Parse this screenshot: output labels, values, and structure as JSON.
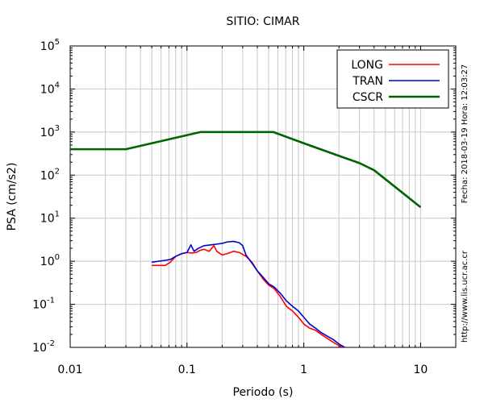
{
  "chart_data": {
    "type": "line",
    "title": "SITIO: CIMAR",
    "xlabel": "Periodo (s)",
    "ylabel": "PSA (cm/s2)",
    "x_scale": "log",
    "y_scale": "log",
    "xlim": [
      0.01,
      20
    ],
    "ylim": [
      0.01,
      100000
    ],
    "grid": true,
    "legend_position": "top-right",
    "x_ticks": [
      {
        "value": 0.01,
        "label": "0.01"
      },
      {
        "value": 0.1,
        "label": "0.1"
      },
      {
        "value": 1,
        "label": "1"
      },
      {
        "value": 10,
        "label": "10"
      }
    ],
    "y_ticks": [
      {
        "value": 0.01,
        "base": "10",
        "exp": "-2"
      },
      {
        "value": 0.1,
        "base": "10",
        "exp": "-1"
      },
      {
        "value": 1,
        "base": "10",
        "exp": "0"
      },
      {
        "value": 10,
        "base": "10",
        "exp": "1"
      },
      {
        "value": 100,
        "base": "10",
        "exp": "2"
      },
      {
        "value": 1000,
        "base": "10",
        "exp": "3"
      },
      {
        "value": 10000,
        "base": "10",
        "exp": "4"
      },
      {
        "value": 100000,
        "base": "10",
        "exp": "5"
      }
    ],
    "series": [
      {
        "name": "LONG",
        "color": "#ff0000",
        "x": [
          0.05,
          0.057,
          0.065,
          0.072,
          0.08,
          0.09,
          0.1,
          0.11,
          0.12,
          0.13,
          0.14,
          0.155,
          0.17,
          0.18,
          0.2,
          0.22,
          0.25,
          0.28,
          0.32,
          0.36,
          0.4,
          0.45,
          0.5,
          0.56,
          0.63,
          0.71,
          0.8,
          0.9,
          1.0,
          1.12,
          1.26,
          1.41,
          1.6,
          1.8,
          2.0,
          2.24
        ],
        "y": [
          0.8,
          0.8,
          0.8,
          0.95,
          1.3,
          1.5,
          1.6,
          1.55,
          1.6,
          1.8,
          1.9,
          1.7,
          2.3,
          1.7,
          1.4,
          1.5,
          1.7,
          1.6,
          1.3,
          0.95,
          0.6,
          0.38,
          0.28,
          0.23,
          0.15,
          0.09,
          0.07,
          0.05,
          0.035,
          0.028,
          0.025,
          0.02,
          0.016,
          0.013,
          0.011,
          0.0095
        ]
      },
      {
        "name": "TRAN",
        "color": "#0000cc",
        "x": [
          0.05,
          0.057,
          0.065,
          0.072,
          0.08,
          0.09,
          0.1,
          0.108,
          0.115,
          0.125,
          0.14,
          0.16,
          0.18,
          0.2,
          0.22,
          0.25,
          0.28,
          0.3,
          0.32,
          0.36,
          0.4,
          0.45,
          0.5,
          0.56,
          0.63,
          0.71,
          0.8,
          0.9,
          1.0,
          1.12,
          1.26,
          1.41,
          1.6,
          1.8,
          2.0,
          2.24
        ],
        "y": [
          0.95,
          1.0,
          1.05,
          1.1,
          1.3,
          1.5,
          1.6,
          2.4,
          1.7,
          2.0,
          2.3,
          2.4,
          2.5,
          2.6,
          2.8,
          2.9,
          2.7,
          2.3,
          1.4,
          0.9,
          0.6,
          0.42,
          0.3,
          0.25,
          0.18,
          0.12,
          0.09,
          0.07,
          0.05,
          0.035,
          0.028,
          0.022,
          0.018,
          0.015,
          0.012,
          0.01
        ]
      },
      {
        "name": "CSCR",
        "color": "#006400",
        "x": [
          0.01,
          0.03,
          0.13,
          0.55,
          1.0,
          2.0,
          3.0,
          4.0,
          10.0
        ],
        "y": [
          400,
          400,
          1000,
          1000,
          550,
          280,
          190,
          130,
          18
        ]
      }
    ]
  },
  "side_text": {
    "date": "Fecha: 2018-03-19 Hora: 12:03:27",
    "url": "http://www.lis.ucr.ac.cr"
  }
}
